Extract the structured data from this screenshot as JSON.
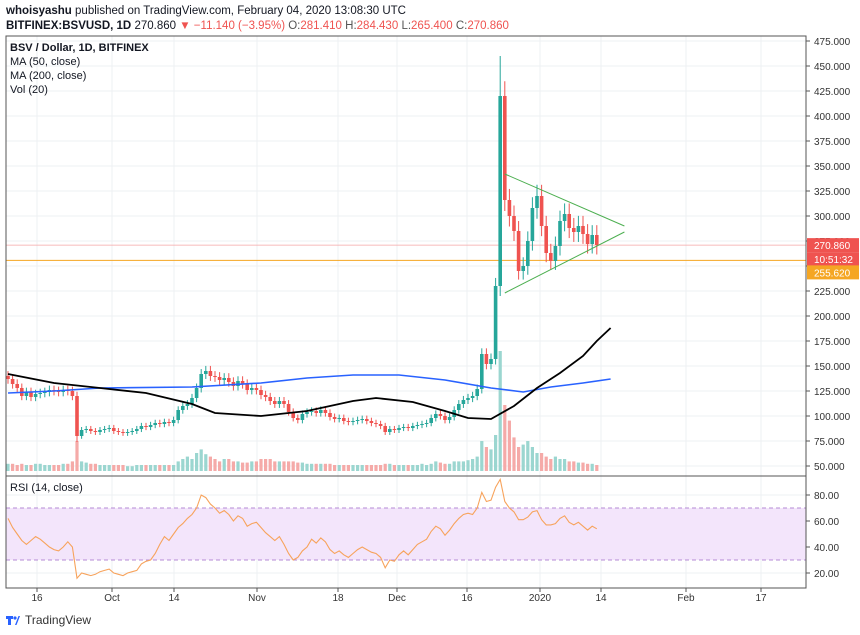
{
  "header": {
    "publisher": "whoisyashu",
    "published_text": "published on TradingView.com, February 04, 2020 13:08:30 UTC",
    "symbol": "BITFINEX:BSVUSD, 1D",
    "last": "270.860",
    "change": "▼ −11.140 (−3.95%)",
    "open_label": "O:",
    "open": "281.410",
    "high_label": "H:",
    "high": "284.430",
    "low_label": "L:",
    "low": "265.400",
    "close_label": "C:",
    "close": "270.860"
  },
  "legend": {
    "main": "BSV / Dollar, 1D, BITFINEX",
    "ma50": "MA (50, close)",
    "ma200": "MA (200, close)",
    "vol": "Vol (20)",
    "rsi": "RSI (14, close)"
  },
  "price_tags": {
    "last_price": "270.860",
    "countdown": "10:51:32",
    "line_price": "255.620"
  },
  "footer": {
    "brand": "TradingView"
  },
  "colors": {
    "up": "#26a69a",
    "down": "#ef5350",
    "ma50": "#000000",
    "ma200": "#2962ff",
    "rsi": "#f7a35c",
    "triangle": "#4caf50",
    "hline": "#f5a623"
  },
  "chart_data": [
    {
      "type": "candlestick",
      "title": "BSV / Dollar, 1D, BITFINEX",
      "x_tick_labels": [
        "16",
        "Oct",
        "14",
        "Nov",
        "18",
        "Dec",
        "16",
        "2020",
        "14",
        "Feb",
        "17"
      ],
      "y_tick_labels": [
        "475.000",
        "450.000",
        "425.000",
        "400.000",
        "375.000",
        "350.000",
        "325.000",
        "300.000",
        "275.000",
        "250.000",
        "225.000",
        "200.000",
        "175.000",
        "150.000",
        "125.000",
        "100.000",
        "75.000",
        "50.000"
      ],
      "ylim": [
        50,
        475
      ],
      "closes": [
        137,
        132,
        128,
        120,
        124,
        119,
        122,
        123,
        124,
        126,
        125,
        124,
        126,
        125,
        120,
        80,
        86,
        87,
        85,
        84,
        86,
        87,
        88,
        85,
        84,
        83,
        84,
        85,
        87,
        90,
        89,
        91,
        93,
        92,
        94,
        93,
        96,
        106,
        110,
        112,
        118,
        128,
        142,
        145,
        140,
        139,
        136,
        138,
        134,
        130,
        135,
        132,
        126,
        128,
        126,
        121,
        119,
        115,
        112,
        115,
        112,
        104,
        98,
        96,
        102,
        104,
        105,
        103,
        106,
        103,
        99,
        97,
        98,
        95,
        94,
        95,
        96,
        97,
        95,
        93,
        92,
        90,
        84,
        87,
        86,
        88,
        89,
        88,
        90,
        91,
        92,
        93,
        98,
        102,
        100,
        96,
        99,
        106,
        112,
        116,
        118,
        120,
        127,
        162,
        152,
        157,
        230,
        420,
        316,
        300,
        285,
        245,
        250,
        275,
        308,
        320,
        290,
        263,
        255,
        270,
        295,
        302,
        288,
        284,
        290,
        282,
        272,
        281,
        271
      ],
      "volume": [
        6,
        6,
        5,
        6,
        5,
        5,
        6,
        6,
        5,
        5,
        5,
        5,
        6,
        6,
        8,
        25,
        8,
        7,
        6,
        6,
        5,
        5,
        5,
        5,
        5,
        5,
        4,
        4,
        5,
        5,
        5,
        5,
        5,
        5,
        5,
        5,
        5,
        8,
        10,
        12,
        10,
        15,
        18,
        14,
        12,
        10,
        8,
        10,
        10,
        8,
        8,
        7,
        7,
        8,
        8,
        10,
        10,
        10,
        8,
        8,
        8,
        8,
        8,
        7,
        7,
        6,
        6,
        6,
        6,
        6,
        6,
        5,
        5,
        5,
        5,
        5,
        5,
        5,
        5,
        5,
        5,
        5,
        6,
        6,
        5,
        5,
        5,
        5,
        5,
        5,
        6,
        5,
        6,
        8,
        7,
        6,
        6,
        8,
        8,
        8,
        9,
        10,
        12,
        25,
        20,
        18,
        30,
        100,
        55,
        42,
        28,
        20,
        22,
        25,
        20,
        15,
        15,
        12,
        10,
        12,
        10,
        10,
        8,
        8,
        7,
        7,
        6,
        6,
        5
      ],
      "ma50": [
        [
          0,
          142
        ],
        [
          10,
          133
        ],
        [
          20,
          128
        ],
        [
          30,
          123
        ],
        [
          40,
          112
        ],
        [
          45,
          103
        ],
        [
          55,
          100
        ],
        [
          65,
          105
        ],
        [
          75,
          115
        ],
        [
          80,
          118
        ],
        [
          88,
          114
        ],
        [
          95,
          105
        ],
        [
          100,
          98
        ],
        [
          105,
          97
        ],
        [
          110,
          110
        ],
        [
          115,
          128
        ],
        [
          120,
          143
        ],
        [
          125,
          160
        ],
        [
          128,
          175
        ],
        [
          131,
          188
        ]
      ],
      "ma200": [
        [
          0,
          123
        ],
        [
          10,
          125
        ],
        [
          20,
          128
        ],
        [
          40,
          129
        ],
        [
          55,
          133
        ],
        [
          65,
          138
        ],
        [
          75,
          141
        ],
        [
          85,
          141
        ],
        [
          95,
          136
        ],
        [
          105,
          128
        ],
        [
          112,
          124
        ],
        [
          118,
          129
        ],
        [
          125,
          133
        ],
        [
          131,
          137
        ]
      ],
      "hline": 255.62,
      "triangle": {
        "upper": [
          [
            108,
            342
          ],
          [
            134,
            290
          ]
        ],
        "lower": [
          [
            108,
            223
          ],
          [
            134,
            284
          ]
        ]
      }
    },
    {
      "type": "line",
      "title": "RSI (14, close)",
      "y_tick_labels": [
        "80.00",
        "60.00",
        "40.00",
        "20.00"
      ],
      "ylim": [
        14,
        94
      ],
      "bands": [
        30,
        70
      ],
      "values": [
        62,
        55,
        50,
        45,
        42,
        45,
        48,
        46,
        43,
        40,
        38,
        37,
        40,
        44,
        40,
        16,
        20,
        19,
        18,
        19,
        21,
        22,
        23,
        20,
        19,
        18,
        20,
        21,
        22,
        27,
        29,
        30,
        35,
        42,
        48,
        45,
        50,
        55,
        58,
        62,
        65,
        70,
        80,
        78,
        73,
        70,
        66,
        68,
        65,
        60,
        64,
        62,
        56,
        58,
        59,
        55,
        51,
        48,
        45,
        48,
        42,
        35,
        30,
        32,
        37,
        40,
        46,
        43,
        47,
        44,
        38,
        35,
        37,
        34,
        32,
        35,
        38,
        40,
        38,
        36,
        35,
        32,
        24,
        30,
        29,
        34,
        37,
        34,
        38,
        42,
        44,
        46,
        52,
        56,
        54,
        49,
        53,
        58,
        62,
        65,
        66,
        65,
        70,
        82,
        75,
        76,
        86,
        92,
        75,
        70,
        67,
        61,
        61,
        63,
        67,
        68,
        61,
        57,
        57,
        58,
        62,
        64,
        59,
        57,
        59,
        56,
        53,
        56,
        54
      ],
      "xlabel": "",
      "ylabel": ""
    }
  ]
}
